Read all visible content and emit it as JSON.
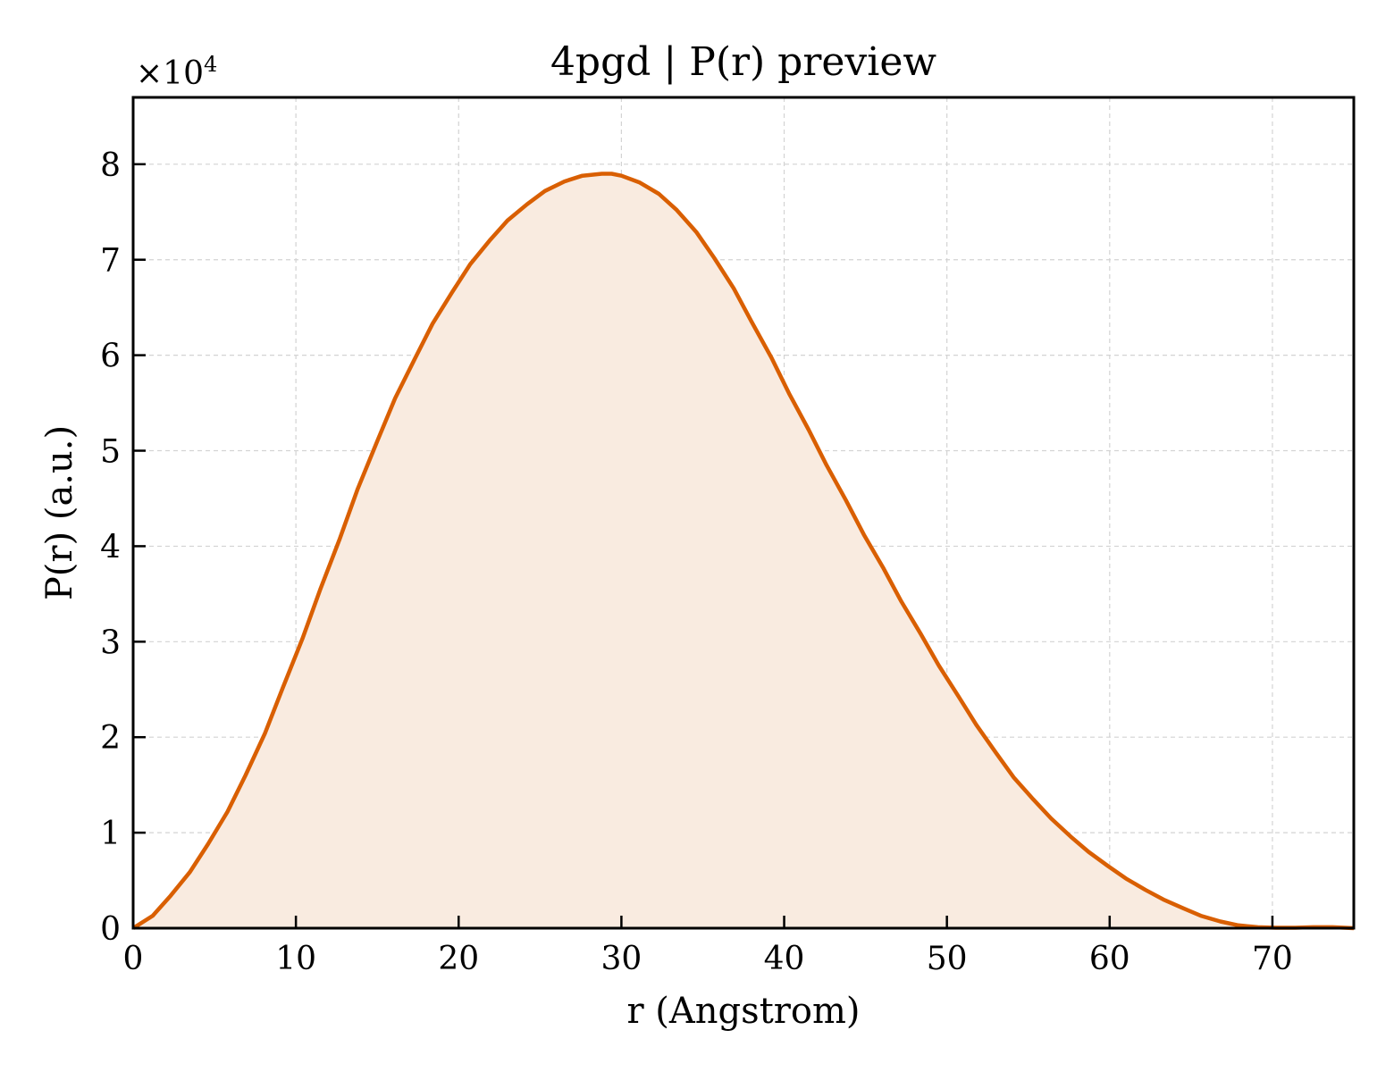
{
  "chart_data": {
    "type": "area",
    "title": "4pgd | P(r) preview",
    "xlabel": "r (Angstrom)",
    "ylabel": "P(r) (a.u.)",
    "y_multiplier": {
      "base": "×10",
      "exponent": "4"
    },
    "xlim": [
      0,
      75
    ],
    "ylim": [
      0,
      8.7
    ],
    "x_ticks": [
      0,
      10,
      20,
      30,
      40,
      50,
      60,
      70
    ],
    "y_ticks": [
      0,
      1,
      2,
      3,
      4,
      5,
      6,
      7,
      8
    ],
    "grid": true,
    "colors": {
      "line": "#d95f02",
      "fill": "#f9ebe0",
      "grid": "#d3d3d3"
    },
    "series": [
      {
        "x": [
          0,
          1.2,
          2.3,
          3.5,
          4.6,
          5.8,
          6.9,
          8.1,
          9.2,
          10.4,
          11.5,
          12.7,
          13.8,
          15.0,
          16.1,
          17.3,
          18.4,
          19.6,
          20.7,
          21.9,
          23.0,
          24.2,
          25.3,
          26.5,
          27.6,
          28.8,
          29.4,
          30.0,
          31.1,
          32.3,
          33.4,
          34.6,
          35.7,
          36.9,
          38.0,
          39.2,
          40.3,
          41.5,
          42.6,
          43.8,
          44.9,
          46.1,
          47.2,
          48.4,
          49.5,
          50.7,
          51.8,
          53.0,
          54.1,
          55.3,
          56.4,
          57.6,
          58.7,
          59.9,
          61.0,
          62.2,
          63.3,
          64.5,
          65.6,
          66.8,
          67.9,
          69.1,
          70.2,
          71.4,
          72.5,
          73.7,
          75.0
        ],
        "y": [
          0.0,
          0.13,
          0.34,
          0.59,
          0.88,
          1.22,
          1.6,
          2.04,
          2.52,
          3.03,
          3.55,
          4.08,
          4.6,
          5.1,
          5.55,
          5.96,
          6.33,
          6.66,
          6.95,
          7.2,
          7.41,
          7.58,
          7.72,
          7.82,
          7.88,
          7.9,
          7.9,
          7.88,
          7.81,
          7.69,
          7.52,
          7.29,
          7.02,
          6.7,
          6.35,
          5.98,
          5.6,
          5.22,
          4.85,
          4.48,
          4.12,
          3.77,
          3.42,
          3.08,
          2.75,
          2.43,
          2.13,
          1.84,
          1.58,
          1.35,
          1.15,
          0.96,
          0.8,
          0.65,
          0.52,
          0.4,
          0.3,
          0.21,
          0.13,
          0.07,
          0.03,
          0.01,
          0.005,
          0.005,
          0.01,
          0.01,
          0.0
        ]
      }
    ]
  }
}
